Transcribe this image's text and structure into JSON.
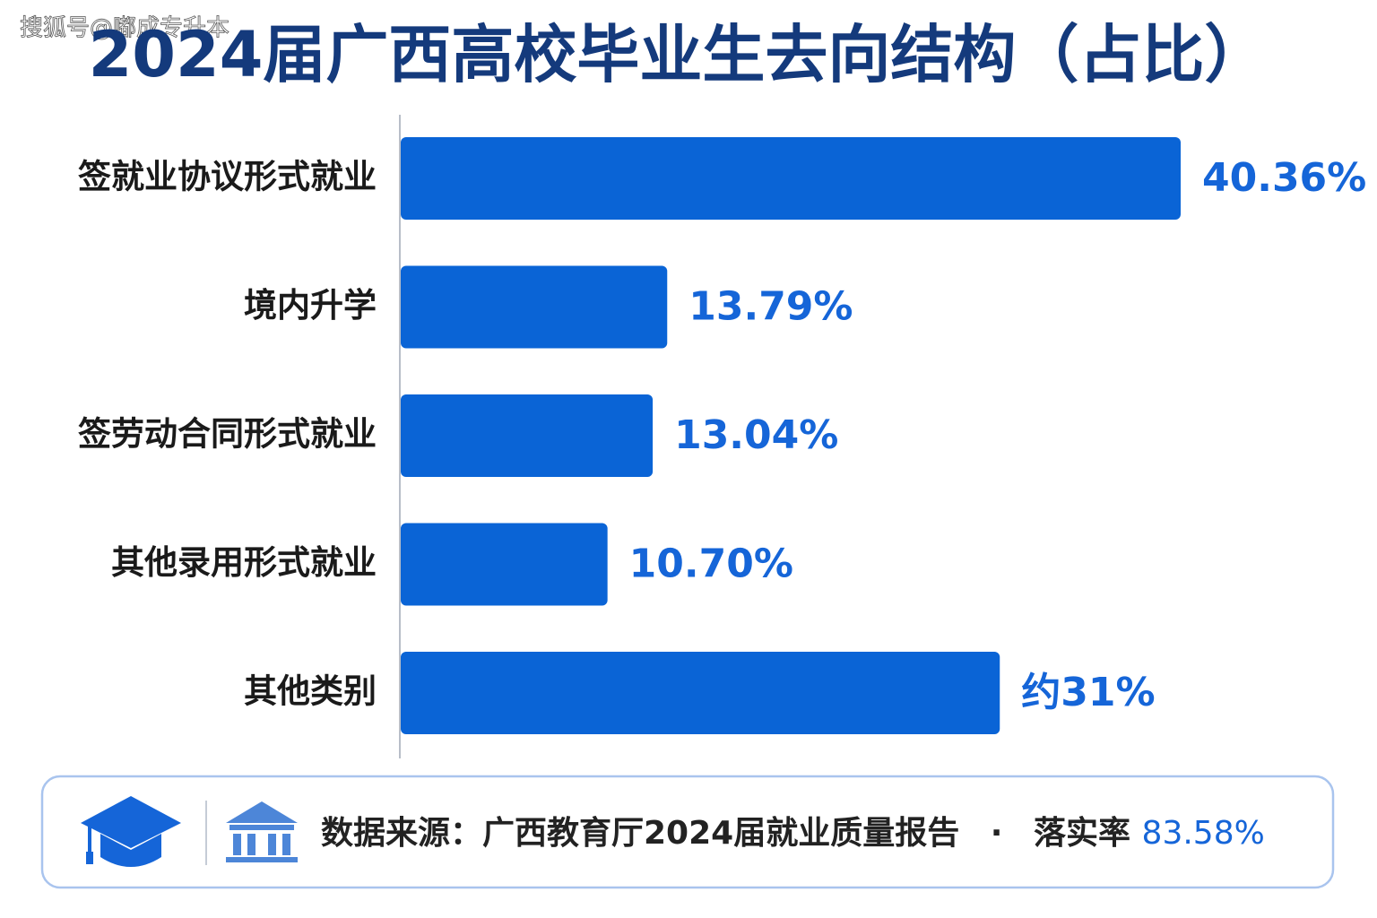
{
  "watermark": "搜狐号@嘟成专升本",
  "chart_data": {
    "type": "hbar",
    "title": "2024届广西高校毕业生去向结构（占比）",
    "categories": [
      "签就业协议形式就业",
      "境内升学",
      "签劳动合同形式就业",
      "其他录用形式就业",
      "其他类别"
    ],
    "values": [
      40.36,
      13.79,
      13.04,
      10.7,
      31
    ],
    "value_labels": [
      "40.36%",
      "13.79%",
      "13.04%",
      "10.70%",
      "约31%"
    ],
    "color": "#0a64d6"
  },
  "footer": {
    "source": "数据来源：广西教育厅2024届就业质量报告",
    "separator": "·",
    "rate_label": "落实率",
    "rate_value": "83.58%"
  }
}
